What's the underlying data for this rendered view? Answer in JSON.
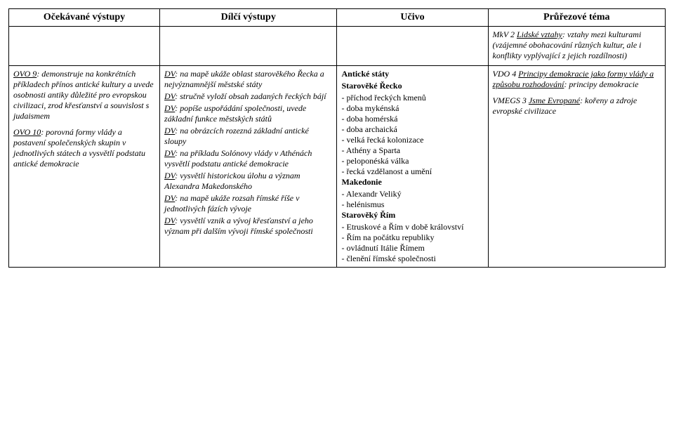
{
  "headers": [
    "Očekávané výstupy",
    "Dílčí výstupy",
    "Učivo",
    "Průřezové téma"
  ],
  "topRow": {
    "col3": {
      "prefix": "MkV 2 ",
      "under": "Lidské vztahy",
      "rest": ": vztahy mezi kulturami (vzájemné obohacování různých kultur, ale i konflikty vyplývající z jejich rozdílnosti)"
    }
  },
  "mainRow": {
    "col0": {
      "p1": {
        "label": "OVO 9",
        "text": ": demonstruje na konkrétních příkladech přínos antické kultury a uvede osobnosti antiky důležité pro evropskou civilizaci, zrod křesťanství a souvislost s judaismem"
      },
      "p2": {
        "label": "OVO 10",
        "text": ": porovná formy vlády a postavení společenských skupin v jednotlivých státech a vysvětlí podstatu antické demokracie"
      }
    },
    "col1": {
      "dv1": {
        "label": "DV",
        "text": ": na mapě ukáže oblast starověkého Řecka a nejvýznamnější městské státy"
      },
      "dv2": {
        "label": "DV",
        "text": ": stručně vyloží obsah zadaných řeckých bájí"
      },
      "dv3": {
        "label": "DV",
        "text": ": popíše uspořádání společnosti, uvede základní funkce městských států"
      },
      "dv4": {
        "label": "DV",
        "text": ": na obrázcích rozezná základní antické sloupy"
      },
      "dv5": {
        "label": "DV",
        "text": ": na příkladu Solónovy vlády v Athénách vysvětlí podstatu antické demokracie"
      },
      "dv6": {
        "label": "DV",
        "text": ": vysvětlí historickou úlohu a význam Alexandra Makedonského"
      },
      "dv7": {
        "label": "DV",
        "text": ": na mapě ukáže rozsah římské říše v jednotlivých fázích vývoje"
      },
      "dv8": {
        "label": "DV",
        "text": ": vysvětlí vznik a vývoj křesťanství a jeho význam při dalším vývoji římské společnosti"
      }
    },
    "col2": {
      "h1": "Antické státy",
      "h2": "Starověké Řecko",
      "greece": [
        "příchod řeckých kmenů",
        "doba mykénská",
        "doba homérská",
        "doba archaická",
        "velká řecká kolonizace",
        "Athény a Sparta",
        "peloponéská válka",
        "řecká vzdělanost a umění"
      ],
      "h3": "Makedonie",
      "macedonia": [
        "Alexandr Veliký",
        "helénismus"
      ],
      "h4": "Starověký Řím",
      "rome": [
        "Etruskové a Řím v době království",
        "Řím na počátku republiky",
        "ovládnutí Itálie Římem",
        "členění římské společnosti"
      ]
    },
    "col3": {
      "p1": {
        "prefix": "VDO 4 ",
        "under": "Principy demokracie jako formy vlády a způsobu rozhodování",
        "rest": ": principy demokracie"
      },
      "p2": {
        "prefix": "VMEGS 3 ",
        "under": "Jsme Evropané",
        "rest": ": kořeny a zdroje evropské civilizace"
      }
    }
  }
}
